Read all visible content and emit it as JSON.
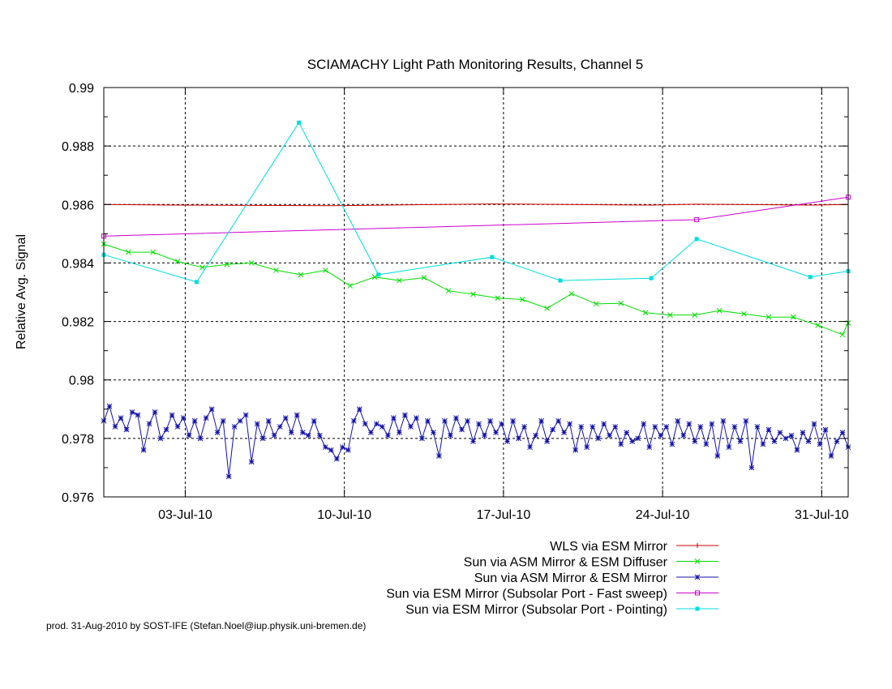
{
  "chart_data": {
    "type": "line",
    "title": "SCIAMACHY Light Path Monitoring Results, Channel 5",
    "xlabel": "",
    "ylabel": "Relative Avg. Signal",
    "x_axis": {
      "kind": "date",
      "range": [
        "2010-06-29T10:00",
        "2010-08-01T04:00"
      ],
      "ticks": [
        "2010-07-03",
        "2010-07-10",
        "2010-07-17",
        "2010-07-24",
        "2010-07-31"
      ],
      "tick_labels": [
        "03-Jul-10",
        "10-Jul-10",
        "17-Jul-10",
        "24-Jul-10",
        "31-Jul-10"
      ]
    },
    "y_axis": {
      "range": [
        0.976,
        0.99
      ],
      "ticks": [
        0.976,
        0.978,
        0.98,
        0.982,
        0.984,
        0.986,
        0.988,
        0.99
      ],
      "tick_labels": [
        "0.976",
        "0.978",
        "0.98",
        "0.982",
        "0.984",
        "0.986",
        "0.988",
        "0.99"
      ]
    },
    "grid": true,
    "legend_position": "below-plot-right",
    "series": [
      {
        "name": "WLS via ESM Mirror",
        "color": "#cc0000",
        "marker": "plus",
        "show_markers": false,
        "points": [
          [
            "2010-06-29T10:00",
            0.986
          ],
          [
            "2010-07-02T12:00",
            0.98598
          ],
          [
            "2010-07-09T12:00",
            0.98596
          ],
          [
            "2010-07-16T12:00",
            0.98602
          ],
          [
            "2010-07-23T12:00",
            0.98598
          ],
          [
            "2010-07-25T12:00",
            0.98601
          ],
          [
            "2010-07-30T12:00",
            0.98598
          ],
          [
            "2010-08-01T04:00",
            0.986
          ]
        ]
      },
      {
        "name": "Sun via ASM Mirror & ESM Diffuser",
        "color": "#00dd00",
        "marker": "x",
        "show_markers": true,
        "points": [
          [
            "2010-06-29T10:00",
            0.98465
          ],
          [
            "2010-06-30T12:00",
            0.98437
          ],
          [
            "2010-07-01T14:00",
            0.98437
          ],
          [
            "2010-07-02T16:00",
            0.98405
          ],
          [
            "2010-07-03T18:00",
            0.98385
          ],
          [
            "2010-07-04T20:00",
            0.98395
          ],
          [
            "2010-07-05T22:00",
            0.984
          ],
          [
            "2010-07-07T00:00",
            0.98375
          ],
          [
            "2010-07-08T02:00",
            0.9836
          ],
          [
            "2010-07-09T04:00",
            0.98375
          ],
          [
            "2010-07-10T06:00",
            0.98322
          ],
          [
            "2010-07-11T08:00",
            0.98352
          ],
          [
            "2010-07-12T10:00",
            0.9834
          ],
          [
            "2010-07-13T12:00",
            0.9835
          ],
          [
            "2010-07-14T14:00",
            0.98305
          ],
          [
            "2010-07-15T16:00",
            0.98293
          ],
          [
            "2010-07-16T18:00",
            0.9828
          ],
          [
            "2010-07-17T20:00",
            0.98275
          ],
          [
            "2010-07-18T22:00",
            0.98245
          ],
          [
            "2010-07-20T00:00",
            0.98295
          ],
          [
            "2010-07-21T02:00",
            0.9826
          ],
          [
            "2010-07-22T04:00",
            0.98262
          ],
          [
            "2010-07-23T06:00",
            0.9823
          ],
          [
            "2010-07-24T08:00",
            0.98222
          ],
          [
            "2010-07-25T10:00",
            0.98222
          ],
          [
            "2010-07-26T12:00",
            0.98237
          ],
          [
            "2010-07-27T14:00",
            0.98226
          ],
          [
            "2010-07-28T16:00",
            0.98215
          ],
          [
            "2010-07-29T18:00",
            0.98215
          ],
          [
            "2010-07-30T20:00",
            0.98187
          ],
          [
            "2010-07-31T22:00",
            0.98155
          ],
          [
            "2010-08-01T04:00",
            0.98195
          ]
        ]
      },
      {
        "name": "Sun via ASM Mirror & ESM Mirror",
        "color": "#1010aa",
        "marker": "star",
        "show_markers": true,
        "points": [
          [
            "2010-06-29T10:00",
            0.9786
          ],
          [
            "2010-06-29T16:00",
            0.9791
          ],
          [
            "2010-06-29T22:00",
            0.9784
          ],
          [
            "2010-06-30T04:00",
            0.9787
          ],
          [
            "2010-06-30T10:00",
            0.9783
          ],
          [
            "2010-06-30T16:00",
            0.9789
          ],
          [
            "2010-06-30T22:00",
            0.9788
          ],
          [
            "2010-07-01T04:00",
            0.9776
          ],
          [
            "2010-07-01T10:00",
            0.9785
          ],
          [
            "2010-07-01T16:00",
            0.9789
          ],
          [
            "2010-07-01T22:00",
            0.978
          ],
          [
            "2010-07-02T04:00",
            0.9783
          ],
          [
            "2010-07-02T10:00",
            0.9788
          ],
          [
            "2010-07-02T16:00",
            0.9784
          ],
          [
            "2010-07-02T22:00",
            0.9787
          ],
          [
            "2010-07-03T04:00",
            0.9781
          ],
          [
            "2010-07-03T10:00",
            0.9786
          ],
          [
            "2010-07-03T16:00",
            0.978
          ],
          [
            "2010-07-03T22:00",
            0.9787
          ],
          [
            "2010-07-04T04:00",
            0.979
          ],
          [
            "2010-07-04T10:00",
            0.9782
          ],
          [
            "2010-07-04T16:00",
            0.9786
          ],
          [
            "2010-07-04T22:00",
            0.9767
          ],
          [
            "2010-07-05T04:00",
            0.9784
          ],
          [
            "2010-07-05T10:00",
            0.9786
          ],
          [
            "2010-07-05T16:00",
            0.9788
          ],
          [
            "2010-07-05T22:00",
            0.9772
          ],
          [
            "2010-07-06T04:00",
            0.9785
          ],
          [
            "2010-07-06T10:00",
            0.978
          ],
          [
            "2010-07-06T16:00",
            0.9786
          ],
          [
            "2010-07-06T22:00",
            0.9781
          ],
          [
            "2010-07-07T04:00",
            0.9784
          ],
          [
            "2010-07-07T10:00",
            0.9787
          ],
          [
            "2010-07-07T16:00",
            0.9782
          ],
          [
            "2010-07-07T22:00",
            0.9788
          ],
          [
            "2010-07-08T04:00",
            0.9782
          ],
          [
            "2010-07-08T10:00",
            0.9781
          ],
          [
            "2010-07-08T16:00",
            0.9786
          ],
          [
            "2010-07-08T22:00",
            0.9781
          ],
          [
            "2010-07-09T04:00",
            0.9777
          ],
          [
            "2010-07-09T10:00",
            0.9776
          ],
          [
            "2010-07-09T16:00",
            0.9773
          ],
          [
            "2010-07-09T22:00",
            0.9777
          ],
          [
            "2010-07-10T04:00",
            0.9776
          ],
          [
            "2010-07-10T10:00",
            0.9786
          ],
          [
            "2010-07-10T16:00",
            0.979
          ],
          [
            "2010-07-10T22:00",
            0.9785
          ],
          [
            "2010-07-11T04:00",
            0.9782
          ],
          [
            "2010-07-11T10:00",
            0.9785
          ],
          [
            "2010-07-11T16:00",
            0.9784
          ],
          [
            "2010-07-11T22:00",
            0.9781
          ],
          [
            "2010-07-12T04:00",
            0.9787
          ],
          [
            "2010-07-12T10:00",
            0.9782
          ],
          [
            "2010-07-12T16:00",
            0.9788
          ],
          [
            "2010-07-12T22:00",
            0.9784
          ],
          [
            "2010-07-13T04:00",
            0.9787
          ],
          [
            "2010-07-13T10:00",
            0.978
          ],
          [
            "2010-07-13T16:00",
            0.9786
          ],
          [
            "2010-07-13T22:00",
            0.9782
          ],
          [
            "2010-07-14T04:00",
            0.9774
          ],
          [
            "2010-07-14T10:00",
            0.9786
          ],
          [
            "2010-07-14T16:00",
            0.9781
          ],
          [
            "2010-07-14T22:00",
            0.9787
          ],
          [
            "2010-07-15T04:00",
            0.9783
          ],
          [
            "2010-07-15T10:00",
            0.9786
          ],
          [
            "2010-07-15T16:00",
            0.9779
          ],
          [
            "2010-07-15T22:00",
            0.9785
          ],
          [
            "2010-07-16T04:00",
            0.9781
          ],
          [
            "2010-07-16T10:00",
            0.9786
          ],
          [
            "2010-07-16T16:00",
            0.9782
          ],
          [
            "2010-07-16T22:00",
            0.9785
          ],
          [
            "2010-07-17T04:00",
            0.9779
          ],
          [
            "2010-07-17T10:00",
            0.9786
          ],
          [
            "2010-07-17T16:00",
            0.978
          ],
          [
            "2010-07-17T22:00",
            0.9784
          ],
          [
            "2010-07-18T04:00",
            0.9777
          ],
          [
            "2010-07-18T10:00",
            0.9781
          ],
          [
            "2010-07-18T16:00",
            0.9786
          ],
          [
            "2010-07-18T22:00",
            0.9779
          ],
          [
            "2010-07-19T04:00",
            0.9783
          ],
          [
            "2010-07-19T10:00",
            0.9786
          ],
          [
            "2010-07-19T16:00",
            0.9782
          ],
          [
            "2010-07-19T22:00",
            0.9785
          ],
          [
            "2010-07-20T04:00",
            0.9776
          ],
          [
            "2010-07-20T10:00",
            0.9784
          ],
          [
            "2010-07-20T16:00",
            0.9777
          ],
          [
            "2010-07-20T22:00",
            0.9784
          ],
          [
            "2010-07-21T04:00",
            0.978
          ],
          [
            "2010-07-21T10:00",
            0.9785
          ],
          [
            "2010-07-21T16:00",
            0.9781
          ],
          [
            "2010-07-21T22:00",
            0.9784
          ],
          [
            "2010-07-22T04:00",
            0.9778
          ],
          [
            "2010-07-22T10:00",
            0.9782
          ],
          [
            "2010-07-22T16:00",
            0.9779
          ],
          [
            "2010-07-22T22:00",
            0.978
          ],
          [
            "2010-07-23T04:00",
            0.9785
          ],
          [
            "2010-07-23T10:00",
            0.9777
          ],
          [
            "2010-07-23T16:00",
            0.9784
          ],
          [
            "2010-07-23T22:00",
            0.9781
          ],
          [
            "2010-07-24T04:00",
            0.9784
          ],
          [
            "2010-07-24T10:00",
            0.9778
          ],
          [
            "2010-07-24T16:00",
            0.9786
          ],
          [
            "2010-07-24T22:00",
            0.9781
          ],
          [
            "2010-07-25T04:00",
            0.9785
          ],
          [
            "2010-07-25T10:00",
            0.9779
          ],
          [
            "2010-07-25T16:00",
            0.9784
          ],
          [
            "2010-07-25T22:00",
            0.9778
          ],
          [
            "2010-07-26T04:00",
            0.9785
          ],
          [
            "2010-07-26T10:00",
            0.9774
          ],
          [
            "2010-07-26T16:00",
            0.9786
          ],
          [
            "2010-07-26T22:00",
            0.9777
          ],
          [
            "2010-07-27T04:00",
            0.9784
          ],
          [
            "2010-07-27T10:00",
            0.9779
          ],
          [
            "2010-07-27T16:00",
            0.9786
          ],
          [
            "2010-07-27T22:00",
            0.977
          ],
          [
            "2010-07-28T04:00",
            0.9784
          ],
          [
            "2010-07-28T10:00",
            0.9778
          ],
          [
            "2010-07-28T16:00",
            0.9783
          ],
          [
            "2010-07-28T22:00",
            0.9779
          ],
          [
            "2010-07-29T04:00",
            0.9782
          ],
          [
            "2010-07-29T10:00",
            0.978
          ],
          [
            "2010-07-29T16:00",
            0.9781
          ],
          [
            "2010-07-29T22:00",
            0.9776
          ],
          [
            "2010-07-30T04:00",
            0.9782
          ],
          [
            "2010-07-30T10:00",
            0.9779
          ],
          [
            "2010-07-30T16:00",
            0.9785
          ],
          [
            "2010-07-30T22:00",
            0.9778
          ],
          [
            "2010-07-31T04:00",
            0.9783
          ],
          [
            "2010-07-31T10:00",
            0.9774
          ],
          [
            "2010-07-31T16:00",
            0.9779
          ],
          [
            "2010-07-31T22:00",
            0.9782
          ],
          [
            "2010-08-01T04:00",
            0.9777
          ]
        ]
      },
      {
        "name": "Sun via ESM Mirror (Subsolar Port - Fast sweep)",
        "color": "#cc00cc",
        "marker": "square-open",
        "show_markers": true,
        "points": [
          [
            "2010-06-29T10:00",
            0.98492
          ],
          [
            "2010-07-25T12:00",
            0.98548
          ],
          [
            "2010-08-01T04:00",
            0.98625
          ]
        ]
      },
      {
        "name": "Sun via ESM Mirror (Subsolar Port - Pointing)",
        "color": "#00dddd",
        "marker": "square-filled",
        "show_markers": true,
        "points": [
          [
            "2010-06-29T10:00",
            0.98428
          ],
          [
            "2010-07-03T12:00",
            0.98335
          ],
          [
            "2010-07-08T00:00",
            0.9888
          ],
          [
            "2010-07-11T12:00",
            0.9836
          ],
          [
            "2010-07-16T12:00",
            0.9842
          ],
          [
            "2010-07-19T12:00",
            0.9834
          ],
          [
            "2010-07-23T12:00",
            0.98348
          ],
          [
            "2010-07-25T12:00",
            0.98482
          ],
          [
            "2010-07-30T12:00",
            0.98352
          ],
          [
            "2010-08-01T04:00",
            0.98372
          ]
        ]
      }
    ]
  },
  "footer": {
    "text": "prod. 31-Aug-2010 by SOST-IFE (Stefan.Noel@iup.physik.uni-bremen.de)"
  }
}
